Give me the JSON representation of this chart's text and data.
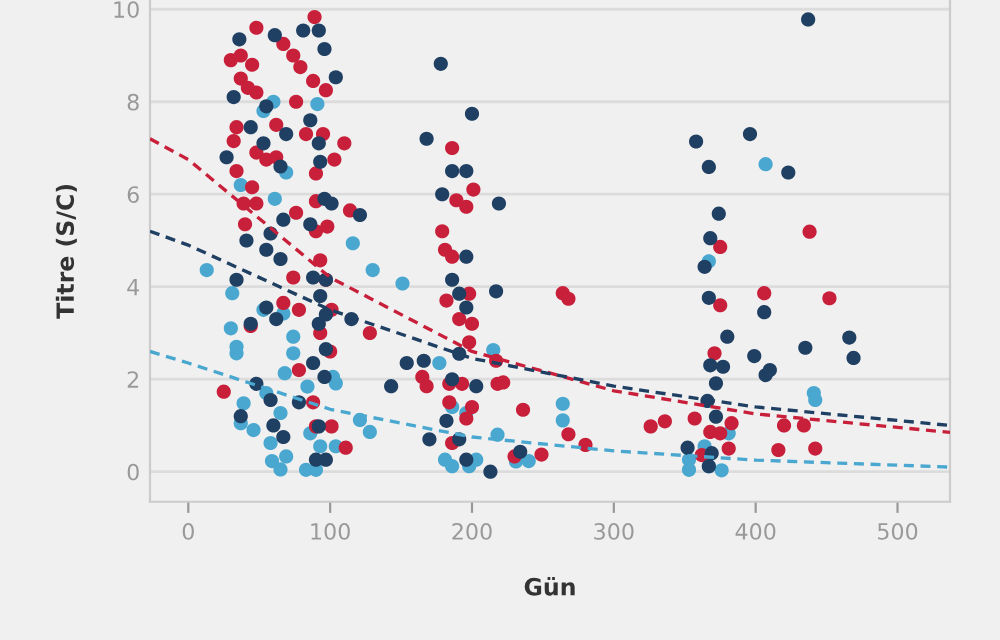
{
  "chart_data": {
    "type": "scatter",
    "xlabel": "Gün",
    "ylabel": "Titre (S/C)",
    "xlim": [
      -27,
      537
    ],
    "ylim": [
      -0.65,
      10.2
    ],
    "xticks": [
      0,
      100,
      200,
      300,
      400,
      500
    ],
    "yticks": [
      0,
      2,
      4,
      6,
      8,
      10
    ],
    "grid": "y",
    "marker": "circle",
    "series": [
      {
        "color": "#4aa8d0",
        "x": [
          13,
          31,
          30,
          34,
          34,
          37,
          61,
          69,
          53,
          60,
          91,
          53,
          67,
          74,
          74,
          68,
          39,
          46,
          37,
          55,
          65,
          58,
          59,
          65,
          69,
          83,
          90,
          93,
          86,
          84,
          102,
          104,
          116,
          130,
          151,
          121,
          128,
          104,
          177,
          181,
          186,
          198,
          203,
          186,
          196,
          218,
          215,
          407,
          367,
          264,
          264,
          441,
          442,
          231,
          240,
          353,
          353,
          364,
          376,
          381,
          367
        ],
        "values": [
          4.36,
          3.86,
          3.1,
          2.7,
          2.56,
          6.2,
          5.9,
          6.47,
          7.8,
          8.0,
          7.95,
          3.5,
          3.42,
          2.92,
          2.56,
          2.13,
          1.48,
          0.9,
          1.05,
          1.7,
          1.27,
          0.62,
          0.23,
          0.05,
          0.33,
          0.04,
          0.04,
          0.55,
          0.83,
          1.84,
          2.05,
          1.91,
          4.94,
          4.36,
          4.07,
          1.12,
          0.86,
          0.55,
          2.35,
          0.26,
          0.12,
          0.12,
          0.26,
          1.4,
          1.27,
          0.8,
          2.63,
          6.65,
          4.55,
          1.47,
          1.11,
          1.7,
          1.55,
          0.22,
          0.23,
          0.26,
          0.04,
          0.55,
          0.03,
          0.83,
          0.12
        ]
      },
      {
        "color": "#c8203a",
        "x": [
          89,
          48,
          30,
          37,
          45,
          37,
          42,
          48,
          67,
          74,
          79,
          88,
          97,
          76,
          34,
          32,
          48,
          55,
          62,
          62,
          83,
          95,
          110,
          103,
          90,
          34,
          45,
          39,
          48,
          90,
          76,
          114,
          40,
          90,
          98,
          93,
          74,
          97,
          67,
          78,
          101,
          44,
          93,
          100,
          128,
          78,
          25,
          88,
          90,
          101,
          111,
          186,
          201,
          179,
          196,
          189,
          181,
          186,
          182,
          198,
          191,
          200,
          198,
          165,
          168,
          184,
          193,
          184,
          200,
          196,
          186,
          217,
          218,
          264,
          268,
          375,
          375,
          438,
          406,
          452,
          371,
          222,
          236,
          268,
          280,
          249,
          230,
          326,
          336,
          357,
          362,
          368,
          375,
          383,
          381,
          416,
          420,
          434,
          442
        ],
        "values": [
          9.83,
          9.6,
          8.9,
          9.0,
          8.8,
          8.5,
          8.3,
          8.2,
          9.25,
          9.0,
          8.75,
          8.45,
          8.25,
          8.0,
          7.45,
          7.15,
          6.9,
          6.75,
          6.8,
          7.5,
          7.3,
          7.3,
          7.1,
          6.75,
          6.45,
          6.5,
          6.15,
          5.8,
          5.8,
          5.85,
          5.6,
          5.65,
          5.35,
          5.2,
          5.3,
          4.57,
          4.2,
          4.15,
          3.65,
          3.5,
          3.5,
          3.15,
          3.0,
          2.6,
          3.0,
          2.2,
          1.73,
          1.5,
          0.98,
          0.98,
          0.52,
          7.0,
          6.1,
          5.2,
          5.73,
          5.87,
          4.8,
          4.65,
          3.7,
          3.85,
          3.3,
          3.2,
          2.8,
          2.05,
          1.85,
          1.9,
          1.9,
          1.5,
          1.4,
          1.15,
          0.62,
          2.4,
          1.9,
          3.86,
          3.74,
          4.86,
          3.6,
          5.19,
          3.86,
          3.75,
          2.56,
          1.93,
          1.34,
          0.81,
          0.58,
          0.37,
          0.33,
          0.98,
          1.09,
          1.15,
          0.36,
          0.86,
          0.83,
          1.05,
          0.5,
          0.47,
          1.0,
          1.0,
          0.5
        ]
      },
      {
        "color": "#1f3f63",
        "x": [
          36,
          61,
          81,
          92,
          96,
          104,
          32,
          44,
          55,
          69,
          86,
          92,
          27,
          53,
          65,
          93,
          96,
          101,
          121,
          41,
          58,
          67,
          86,
          88,
          97,
          34,
          55,
          65,
          44,
          55,
          62,
          93,
          92,
          97,
          115,
          88,
          97,
          96,
          48,
          58,
          78,
          37,
          60,
          67,
          92,
          90,
          97,
          178,
          200,
          168,
          179,
          196,
          186,
          196,
          186,
          196,
          191,
          154,
          143,
          166,
          191,
          186,
          203,
          182,
          191,
          196,
          170,
          213,
          217,
          219,
          437,
          358,
          396,
          367,
          423,
          374,
          368,
          364,
          367,
          406,
          380,
          435,
          466,
          469,
          399,
          407,
          410,
          368,
          377,
          372,
          366,
          372,
          352,
          367,
          369,
          234
        ],
        "values": [
          9.35,
          9.44,
          9.54,
          9.54,
          9.14,
          8.53,
          8.1,
          7.45,
          7.9,
          7.3,
          7.6,
          7.1,
          6.8,
          7.1,
          6.6,
          6.7,
          5.9,
          5.8,
          5.55,
          5.0,
          5.15,
          5.45,
          5.35,
          4.2,
          4.15,
          4.15,
          4.8,
          4.6,
          3.2,
          3.55,
          3.3,
          3.8,
          3.2,
          3.4,
          3.3,
          2.35,
          2.65,
          2.05,
          1.9,
          1.55,
          1.5,
          1.2,
          1.0,
          0.75,
          0.98,
          0.26,
          0.26,
          8.82,
          7.74,
          7.2,
          6.0,
          6.5,
          6.5,
          4.65,
          4.15,
          3.55,
          3.85,
          2.35,
          1.85,
          2.4,
          2.55,
          2.0,
          1.85,
          1.1,
          0.7,
          0.26,
          0.7,
          0.0,
          3.9,
          5.8,
          9.78,
          7.14,
          7.3,
          6.59,
          6.47,
          5.58,
          5.05,
          4.43,
          3.76,
          3.45,
          2.92,
          2.68,
          2.9,
          2.46,
          2.5,
          2.09,
          2.2,
          2.3,
          2.27,
          1.91,
          1.53,
          1.19,
          0.52,
          0.12,
          0.4,
          0.43
        ]
      },
      {
        "type": "line",
        "marker": "none",
        "line_style": "dashed",
        "color": "#c8203a",
        "x": [
          -27,
          0,
          100,
          200,
          300,
          400,
          537
        ],
        "values": [
          7.2,
          6.75,
          4.2,
          2.6,
          1.75,
          1.25,
          0.85
        ]
      },
      {
        "type": "line",
        "marker": "none",
        "line_style": "dashed",
        "color": "#1f3f63",
        "x": [
          -27,
          0,
          100,
          200,
          300,
          400,
          537
        ],
        "values": [
          5.2,
          4.9,
          3.5,
          2.45,
          1.85,
          1.4,
          1.0
        ]
      },
      {
        "type": "line",
        "marker": "none",
        "line_style": "dashed",
        "color": "#4aa8d0",
        "x": [
          -27,
          0,
          100,
          200,
          300,
          400,
          537
        ],
        "values": [
          2.6,
          2.35,
          1.35,
          0.75,
          0.45,
          0.25,
          0.1
        ]
      }
    ]
  }
}
